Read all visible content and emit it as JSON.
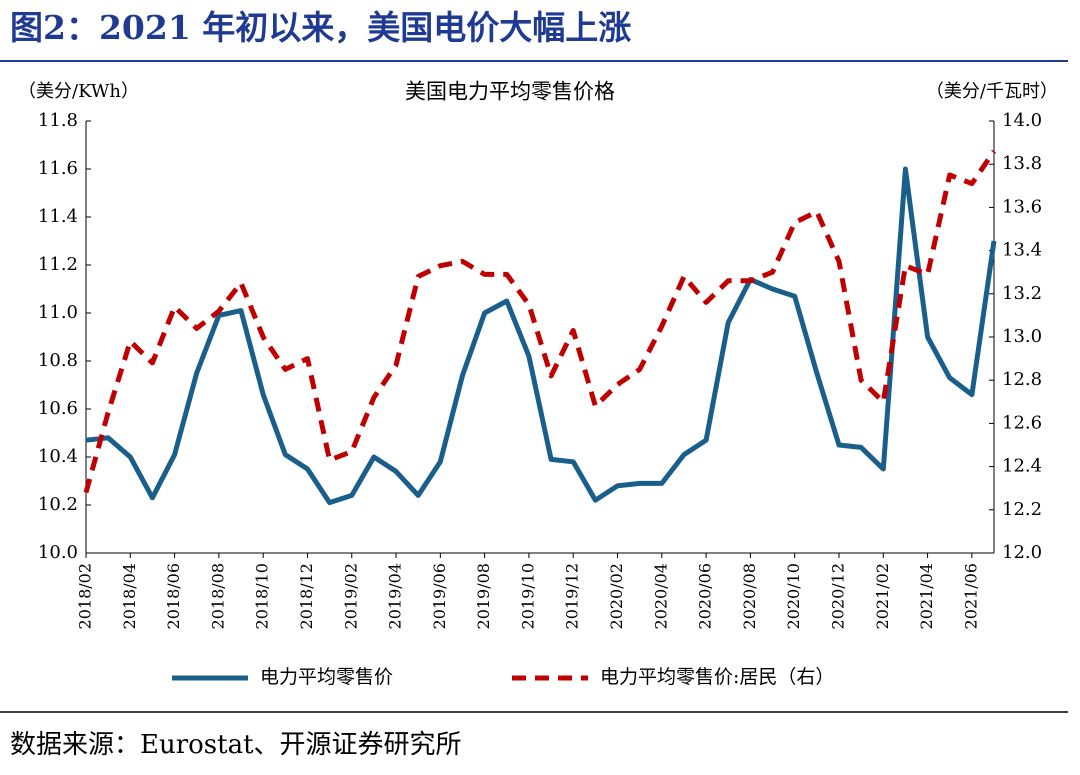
{
  "header": {
    "title": "图2：2021 年初以来，美国电价大幅上涨"
  },
  "chart_data": {
    "type": "line",
    "title": "美国电力平均零售价格",
    "ylabel": "（美分/KWh）",
    "y2label": "（美分/千瓦时）",
    "categories": [
      "2018/02",
      null,
      "2018/04",
      null,
      "2018/06",
      null,
      "2018/08",
      null,
      "2018/10",
      null,
      "2018/12",
      null,
      "2019/02",
      null,
      "2019/04",
      null,
      "2019/06",
      null,
      "2019/08",
      null,
      "2019/10",
      null,
      "2019/12",
      null,
      "2020/02",
      null,
      "2020/04",
      null,
      "2020/06",
      null,
      "2020/08",
      null,
      "2020/10",
      null,
      "2020/12",
      null,
      "2021/02",
      null,
      "2021/04",
      null,
      "2021/06",
      null
    ],
    "ylim": [
      10.0,
      11.8
    ],
    "yticks": [
      {
        "value": 10,
        "label": "10.0"
      },
      10.2,
      10.4,
      10.6,
      10.8,
      {
        "value": 11,
        "label": "11.0"
      },
      11.2,
      11.4,
      11.6,
      11.8
    ],
    "y2lim": [
      12.0,
      14.0
    ],
    "y2ticks": [
      {
        "value": 12,
        "label": "12.0"
      },
      12.2,
      12.4,
      12.6,
      12.8,
      {
        "value": 13,
        "label": "13.0"
      },
      13.2,
      13.4,
      13.6,
      13.8,
      {
        "value": 14,
        "label": "14.0"
      }
    ],
    "series": [
      {
        "name": "电力平均零售价",
        "color": "#1a5f8c",
        "line_style": "solid",
        "values": [
          10.47,
          10.48,
          10.4,
          10.23,
          10.41,
          10.75,
          10.99,
          11.01,
          10.66,
          10.41,
          10.35,
          10.21,
          10.24,
          10.4,
          10.34,
          10.24,
          10.38,
          10.74,
          11.0,
          11.05,
          10.82,
          10.39,
          10.38,
          10.22,
          10.28,
          10.29,
          10.29,
          10.41,
          10.47,
          10.96,
          11.14,
          11.1,
          11.07,
          10.75,
          10.45,
          10.44,
          10.35,
          11.6,
          10.9,
          10.73,
          10.66,
          11.3
        ]
      },
      {
        "name": "电力平均零售价:居民（右）",
        "color": "#c00000",
        "line_style": "dashed",
        "axis": "y2",
        "values": [
          12.28,
          12.65,
          12.98,
          12.88,
          13.14,
          13.04,
          13.12,
          13.25,
          13.0,
          12.85,
          12.9,
          12.43,
          12.47,
          12.72,
          12.87,
          13.28,
          13.33,
          13.35,
          13.29,
          13.29,
          13.15,
          12.82,
          13.03,
          12.68,
          12.78,
          12.85,
          13.05,
          13.28,
          13.16,
          13.26,
          13.26,
          13.3,
          13.53,
          13.58,
          13.35,
          12.8,
          12.7,
          13.33,
          13.29,
          13.75,
          13.71,
          13.86
        ]
      }
    ]
  },
  "footer": {
    "source": "数据来源：Eurostat、开源证券研究所"
  }
}
